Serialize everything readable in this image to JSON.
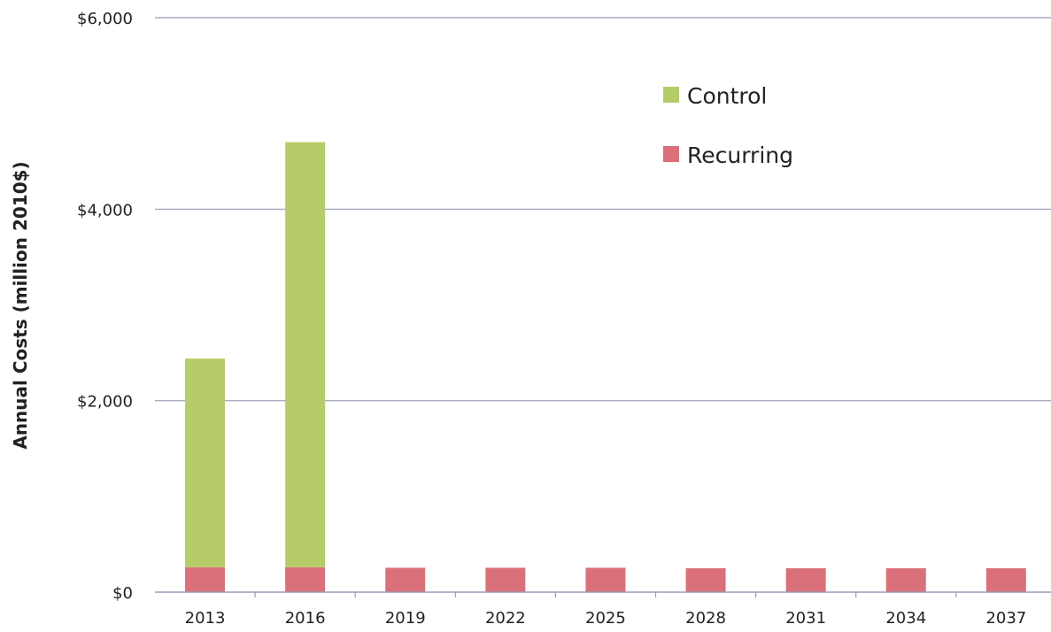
{
  "chart_data": {
    "type": "bar",
    "stacked": true,
    "ylabel": "Annual Costs (million 2010$)",
    "xlabel": "",
    "title": "",
    "ylim": [
      0,
      6000
    ],
    "yticks": [
      0,
      2000,
      4000,
      6000
    ],
    "ytick_labels": [
      "$0",
      "$2,000",
      "$4,000",
      "$6,000"
    ],
    "categories": [
      "2013",
      "2016",
      "2019",
      "2022",
      "2025",
      "2028",
      "2031",
      "2034",
      "2037"
    ],
    "series": [
      {
        "name": "Recurring",
        "color": "#d9707a",
        "values": [
          260,
          260,
          255,
          255,
          255,
          250,
          250,
          250,
          250
        ]
      },
      {
        "name": "Control",
        "color": "#b6cc69",
        "values": [
          2180,
          4440,
          0,
          0,
          0,
          0,
          0,
          0,
          0
        ]
      }
    ],
    "legend": {
      "position": "top-right",
      "order": [
        "Control",
        "Recurring"
      ]
    },
    "grid": true,
    "gridline_color": "#9a9cb4",
    "axis_color": "#9a9cb4"
  }
}
